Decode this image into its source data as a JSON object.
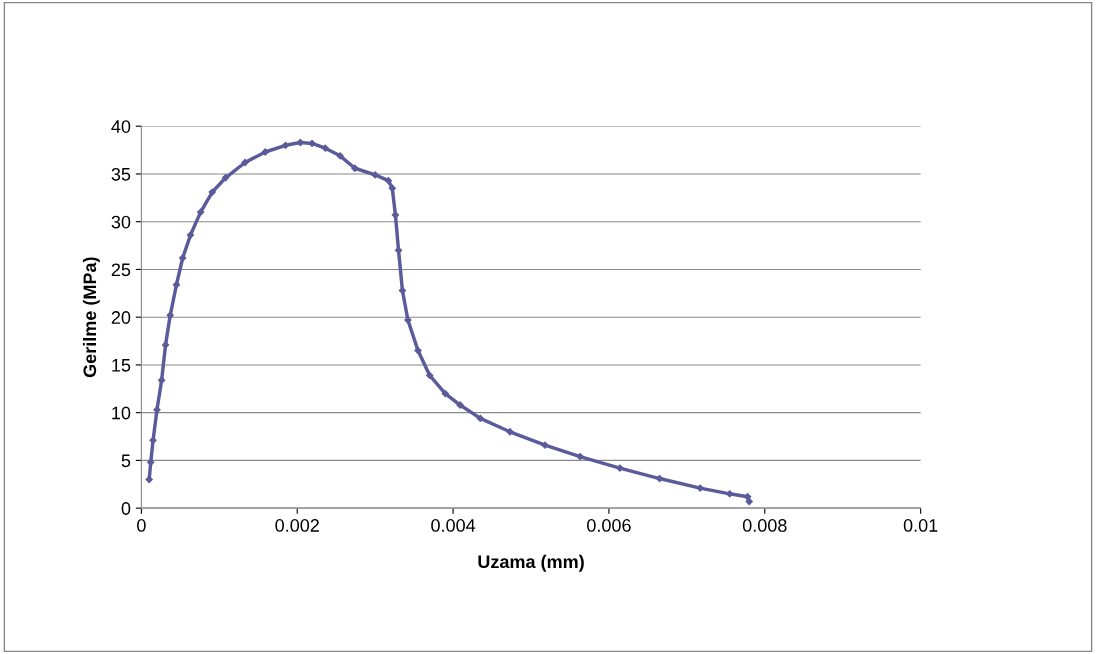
{
  "chart_data": {
    "type": "line",
    "xlabel": "Uzama (mm)",
    "ylabel": "Gerilme (MPa)",
    "xlim": [
      0,
      0.01
    ],
    "xticks": [
      0,
      0.002,
      0.004,
      0.006,
      0.008,
      0.01
    ],
    "ylim": [
      0,
      40
    ],
    "yticks": [
      0,
      5,
      10,
      15,
      20,
      25,
      30,
      35,
      40
    ],
    "grid": "y",
    "legend": false,
    "marker": "diamond",
    "line_style": "solid",
    "series": [
      {
        "color": "#5b5b9b",
        "x": [
          0.0001,
          0.00012,
          0.00015,
          0.0002,
          0.00026,
          0.00031,
          0.00037,
          0.00045,
          0.00053,
          0.00063,
          0.00076,
          0.00091,
          0.00108,
          0.00133,
          0.00159,
          0.00185,
          0.00204,
          0.00219,
          0.00236,
          0.00255,
          0.00274,
          0.003,
          0.00317,
          0.00322,
          0.00326,
          0.0033,
          0.00335,
          0.00342,
          0.00355,
          0.0037,
          0.0039,
          0.00409,
          0.00435,
          0.00473,
          0.00518,
          0.00563,
          0.00614,
          0.00665,
          0.00717,
          0.00755,
          0.00778,
          0.0078
        ],
        "values": [
          3.0,
          4.8,
          7.1,
          10.3,
          13.4,
          17.1,
          20.2,
          23.4,
          26.2,
          28.6,
          31,
          33.1,
          34.6,
          36.2,
          37.3,
          38,
          38.3,
          38.2,
          37.7,
          36.9,
          35.6,
          34.9,
          34.3,
          33.5,
          30.7,
          27,
          22.8,
          19.7,
          16.5,
          13.9,
          12,
          10.8,
          9.4,
          8,
          6.6,
          5.4,
          4.2,
          3.1,
          2.1,
          1.5,
          1.2,
          0.7
        ]
      }
    ]
  }
}
